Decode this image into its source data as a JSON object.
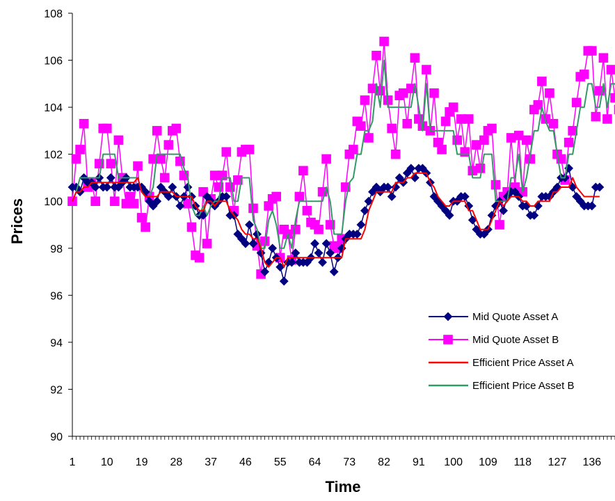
{
  "chart_data": {
    "type": "line",
    "title": "",
    "xlabel": "Time",
    "ylabel": "Prices",
    "xlim": [
      1,
      142
    ],
    "ylim": [
      90,
      108
    ],
    "y_ticks": [
      90,
      92,
      94,
      96,
      98,
      100,
      102,
      104,
      106,
      108
    ],
    "x_ticks": [
      1,
      10,
      19,
      28,
      37,
      46,
      55,
      64,
      73,
      82,
      91,
      100,
      109,
      118,
      127,
      136
    ],
    "grid": false,
    "legend_position": "bottom-right",
    "series": [
      {
        "name": "Mid Quote Asset A",
        "color": "#000080",
        "marker": "diamond",
        "values": [
          100.6,
          100.6,
          100.4,
          101.0,
          100.8,
          100.8,
          100.6,
          101.0,
          100.6,
          100.6,
          101.0,
          100.6,
          100.6,
          100.8,
          101.0,
          100.6,
          100.6,
          100.6,
          100.6,
          100.4,
          100.0,
          99.8,
          100.0,
          100.6,
          100.4,
          100.2,
          100.6,
          100.2,
          99.8,
          100.2,
          100.6,
          100.2,
          99.8,
          99.4,
          99.4,
          100.2,
          100.0,
          99.8,
          100.0,
          100.2,
          100.2,
          99.4,
          99.4,
          98.6,
          98.4,
          98.2,
          99.0,
          98.2,
          98.6,
          97.8,
          97.0,
          97.4,
          98.0,
          97.6,
          97.2,
          96.6,
          97.4,
          97.4,
          97.8,
          97.4,
          97.4,
          97.4,
          97.6,
          98.2,
          97.8,
          97.4,
          98.2,
          97.8,
          97.0,
          97.6,
          98.0,
          98.4,
          98.6,
          98.6,
          98.6,
          99.0,
          99.6,
          100.0,
          100.4,
          100.6,
          100.4,
          100.6,
          100.6,
          100.2,
          100.6,
          101.0,
          100.8,
          101.2,
          101.4,
          101.0,
          101.4,
          101.4,
          101.2,
          100.8,
          100.2,
          100.0,
          99.8,
          99.6,
          99.4,
          100.0,
          100.0,
          100.2,
          100.2,
          99.8,
          99.2,
          98.8,
          98.6,
          98.6,
          98.8,
          99.4,
          99.8,
          100.0,
          99.6,
          100.2,
          100.4,
          100.4,
          100.2,
          99.8,
          99.8,
          99.4,
          99.4,
          99.8,
          100.2,
          100.2,
          100.2,
          100.4,
          100.6,
          101.0,
          101.0,
          101.4,
          100.6,
          100.2,
          100.0,
          99.8,
          99.8,
          99.8,
          100.6,
          100.6
        ]
      },
      {
        "name": "Mid Quote Asset B",
        "color": "#FF00FF",
        "marker": "square",
        "values": [
          100.0,
          101.8,
          102.2,
          103.3,
          100.6,
          100.8,
          100.0,
          101.6,
          103.1,
          103.1,
          101.6,
          100.0,
          102.6,
          101.0,
          99.9,
          100.2,
          99.9,
          101.5,
          99.3,
          98.9,
          100.2,
          101.8,
          103.0,
          101.8,
          101.0,
          102.4,
          103.0,
          103.1,
          101.7,
          101.1,
          99.9,
          98.9,
          97.7,
          97.6,
          100.4,
          98.2,
          100.1,
          101.1,
          100.6,
          101.1,
          102.1,
          100.6,
          99.6,
          100.9,
          102.1,
          102.2,
          102.2,
          99.7,
          98.1,
          96.9,
          98.3,
          99.8,
          100.1,
          100.2,
          97.6,
          98.8,
          98.6,
          97.5,
          98.8,
          100.2,
          101.3,
          99.6,
          99.1,
          99.0,
          98.8,
          100.4,
          101.8,
          99.0,
          98.1,
          98.0,
          98.4,
          100.6,
          102.0,
          102.2,
          103.4,
          103.2,
          104.3,
          102.7,
          104.8,
          106.2,
          104.7,
          106.8,
          104.3,
          103.1,
          102.0,
          104.5,
          104.6,
          103.3,
          104.8,
          106.1,
          103.5,
          103.2,
          105.6,
          103.0,
          104.6,
          102.5,
          102.2,
          103.4,
          103.8,
          104.0,
          102.6,
          103.5,
          102.1,
          103.5,
          101.3,
          102.4,
          101.4,
          102.6,
          103.0,
          103.1,
          100.7,
          99.0,
          100.2,
          100.4,
          102.7,
          100.6,
          102.8,
          100.4,
          102.6,
          101.8,
          103.9,
          104.1,
          105.1,
          103.5,
          104.6,
          103.3,
          102.0,
          101.8,
          100.9,
          102.5,
          103.0,
          104.2,
          105.3,
          105.4,
          106.4,
          106.4,
          103.6,
          104.7,
          106.1,
          103.5,
          105.6,
          104.4,
          103.9,
          105.5
        ]
      },
      {
        "name": "Efficient Price Asset A",
        "color": "#FF0000",
        "marker": "none",
        "values": [
          100.0,
          100.4,
          100.4,
          100.6,
          100.6,
          100.8,
          100.8,
          100.8,
          100.8,
          100.8,
          100.8,
          100.8,
          100.8,
          100.8,
          100.8,
          100.8,
          100.8,
          101.0,
          100.4,
          100.2,
          100.2,
          100.2,
          100.2,
          100.4,
          100.4,
          100.4,
          100.4,
          100.2,
          100.2,
          100.2,
          100.2,
          100.2,
          99.8,
          99.6,
          99.6,
          100.0,
          100.0,
          99.8,
          100.0,
          100.0,
          100.0,
          99.6,
          99.4,
          99.2,
          98.8,
          98.6,
          98.6,
          98.4,
          98.4,
          98.0,
          97.4,
          97.2,
          97.4,
          97.6,
          97.6,
          97.2,
          97.6,
          97.6,
          97.6,
          97.6,
          97.6,
          97.6,
          97.6,
          97.6,
          97.6,
          97.6,
          97.6,
          97.6,
          97.6,
          97.6,
          97.6,
          98.4,
          98.4,
          98.4,
          98.4,
          98.4,
          98.8,
          99.6,
          100.0,
          100.4,
          100.4,
          100.4,
          100.4,
          100.4,
          100.8,
          100.8,
          100.8,
          101.0,
          101.0,
          101.2,
          101.2,
          101.2,
          101.2,
          100.8,
          100.6,
          100.2,
          100.0,
          99.8,
          99.8,
          100.0,
          100.0,
          100.0,
          100.0,
          99.6,
          99.6,
          99.2,
          98.8,
          98.8,
          98.8,
          99.2,
          99.6,
          100.0,
          99.8,
          100.0,
          100.2,
          100.2,
          100.2,
          100.0,
          100.0,
          99.8,
          99.8,
          100.0,
          100.0,
          100.0,
          100.0,
          100.4,
          100.4,
          100.6,
          100.6,
          100.6,
          101.0,
          100.6,
          100.4,
          100.2,
          100.2,
          100.2,
          100.2,
          100.2
        ]
      },
      {
        "name": "Efficient Price Asset B",
        "color": "#339966",
        "marker": "none",
        "values": [
          100.0,
          100.4,
          101.0,
          101.0,
          101.0,
          101.0,
          101.0,
          101.0,
          102.0,
          102.0,
          102.0,
          102.0,
          101.0,
          101.0,
          101.0,
          101.0,
          101.0,
          101.0,
          100.4,
          100.2,
          100.2,
          100.6,
          102.0,
          102.0,
          102.0,
          102.0,
          102.0,
          102.0,
          102.0,
          101.4,
          101.0,
          99.8,
          99.4,
          99.4,
          99.8,
          99.4,
          99.8,
          100.0,
          100.0,
          101.0,
          101.0,
          101.0,
          100.0,
          100.0,
          101.0,
          101.0,
          101.0,
          99.2,
          98.8,
          98.0,
          98.0,
          99.2,
          99.6,
          99.0,
          98.0,
          98.0,
          98.6,
          98.0,
          99.2,
          100.0,
          100.0,
          100.0,
          100.0,
          100.0,
          100.0,
          100.0,
          100.6,
          100.0,
          98.6,
          98.6,
          98.6,
          100.0,
          100.8,
          101.0,
          102.0,
          102.0,
          103.0,
          103.0,
          103.4,
          105.0,
          104.0,
          106.0,
          104.0,
          104.0,
          104.0,
          104.0,
          104.0,
          104.0,
          104.0,
          105.0,
          104.0,
          103.0,
          105.0,
          103.0,
          103.0,
          103.0,
          103.0,
          103.0,
          103.0,
          103.0,
          102.0,
          102.0,
          102.0,
          102.0,
          101.0,
          101.0,
          101.0,
          102.0,
          102.0,
          102.0,
          100.0,
          100.0,
          100.0,
          100.0,
          101.0,
          101.0,
          102.0,
          100.4,
          101.0,
          102.0,
          103.0,
          103.0,
          104.0,
          103.4,
          103.0,
          103.0,
          102.0,
          101.0,
          101.0,
          102.0,
          102.0,
          103.0,
          104.0,
          104.0,
          105.0,
          105.0,
          104.0,
          104.0,
          105.0,
          104.0,
          105.0,
          105.0,
          104.4,
          105.0
        ]
      }
    ]
  }
}
